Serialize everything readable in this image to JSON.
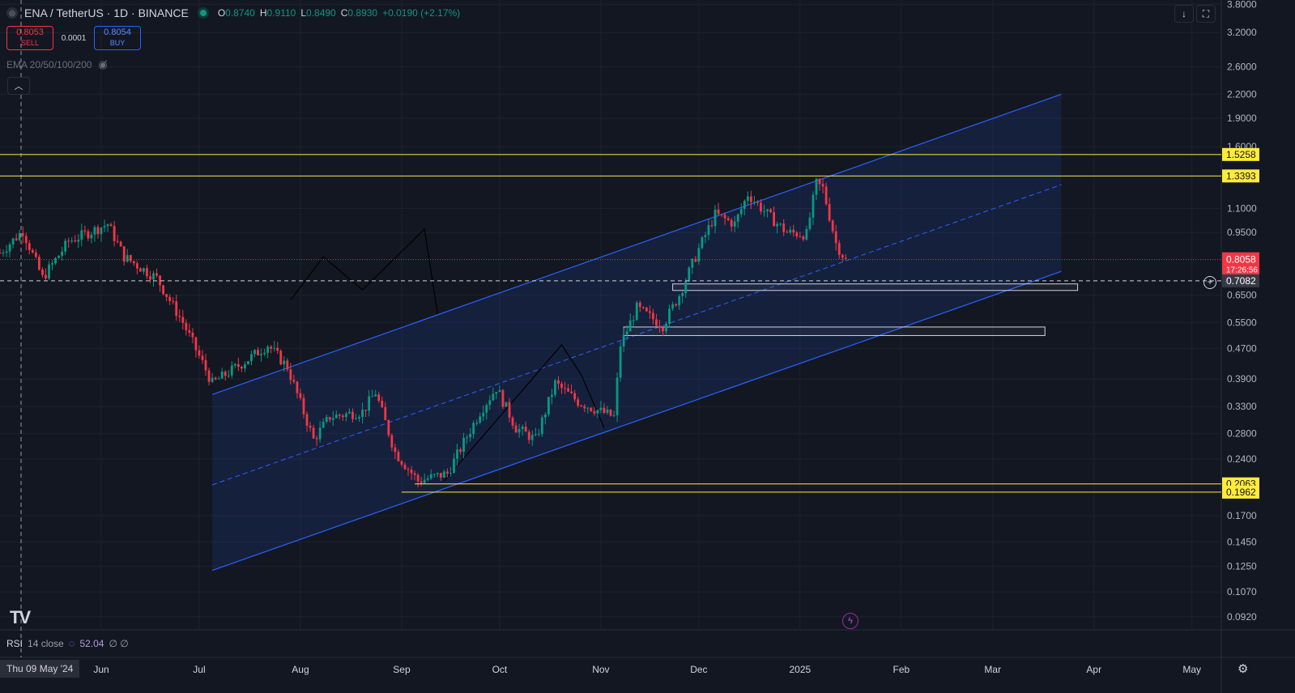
{
  "header": {
    "symbol": "ENA / TetherUS · 1D · BINANCE",
    "ohlc": {
      "O": "0.8740",
      "H": "0.9110",
      "L": "0.8490",
      "C": "0.8930",
      "change": "+0.0190 (+2.17%)"
    }
  },
  "trade": {
    "sell_price": "0.8053",
    "sell_label": "SELL",
    "spread": "0.0001",
    "buy_price": "0.8054",
    "buy_label": "BUY"
  },
  "indicators": {
    "ema_label": "EMA 20/50/100/200"
  },
  "rsi": {
    "name": "RSI",
    "params": "14 close",
    "value": "52.04",
    "extra": "∅ ∅"
  },
  "cursor_date": "Thu 09 May '24",
  "icons": [
    "symbol-icon",
    "eye-icon",
    "collapse-icon",
    "download-icon",
    "fullscreen-icon",
    "tv-logo",
    "bolt-icon",
    "rsi-icon",
    "gear-icon",
    "plus-circle-icon"
  ],
  "colors": {
    "background": "#131722",
    "up": "#089981",
    "down": "#f23645",
    "channel": "#2962ff",
    "level": "#ffeb3b",
    "price_tag": "#f23645"
  },
  "chart_data": {
    "type": "candlestick",
    "scale": "log",
    "ylim": [
      0.085,
      3.9
    ],
    "x_range": [
      "2024-05-01",
      "2025-05-10"
    ],
    "y_ticks": [
      "3.8000",
      "3.2000",
      "2.6000",
      "2.2000",
      "1.9000",
      "1.6000",
      "1.1000",
      "0.9500",
      "0.6500",
      "0.5500",
      "0.4700",
      "0.3900",
      "0.3300",
      "0.2800",
      "0.2400",
      "0.1700",
      "0.1450",
      "0.1250",
      "0.1070",
      "0.0920"
    ],
    "x_ticks": [
      {
        "label": "Jun",
        "date": "2024-06-01"
      },
      {
        "label": "Jul",
        "date": "2024-07-01"
      },
      {
        "label": "Aug",
        "date": "2024-08-01"
      },
      {
        "label": "Sep",
        "date": "2024-09-01"
      },
      {
        "label": "Oct",
        "date": "2024-10-01"
      },
      {
        "label": "Nov",
        "date": "2024-11-01"
      },
      {
        "label": "Dec",
        "date": "2024-12-01"
      },
      {
        "label": "2025",
        "date": "2025-01-01"
      },
      {
        "label": "Feb",
        "date": "2025-02-01"
      },
      {
        "label": "Mar",
        "date": "2025-03-01"
      },
      {
        "label": "Apr",
        "date": "2025-04-01"
      },
      {
        "label": "May",
        "date": "2025-05-01"
      }
    ],
    "price_anchors": [
      [
        "2024-05-01",
        0.84
      ],
      [
        "2024-05-08",
        0.96
      ],
      [
        "2024-05-14",
        0.72
      ],
      [
        "2024-05-22",
        0.9
      ],
      [
        "2024-06-03",
        1.0
      ],
      [
        "2024-06-08",
        0.82
      ],
      [
        "2024-06-18",
        0.72
      ],
      [
        "2024-06-26",
        0.55
      ],
      [
        "2024-07-05",
        0.38
      ],
      [
        "2024-07-16",
        0.44
      ],
      [
        "2024-07-22",
        0.48
      ],
      [
        "2024-07-28",
        0.42
      ],
      [
        "2024-08-05",
        0.27
      ],
      [
        "2024-08-10",
        0.31
      ],
      [
        "2024-08-20",
        0.32
      ],
      [
        "2024-08-24",
        0.36
      ],
      [
        "2024-08-30",
        0.25
      ],
      [
        "2024-09-06",
        0.21
      ],
      [
        "2024-09-15",
        0.22
      ],
      [
        "2024-09-25",
        0.32
      ],
      [
        "2024-09-30",
        0.37
      ],
      [
        "2024-10-06",
        0.29
      ],
      [
        "2024-10-12",
        0.27
      ],
      [
        "2024-10-18",
        0.38
      ],
      [
        "2024-10-25",
        0.34
      ],
      [
        "2024-11-01",
        0.32
      ],
      [
        "2024-11-05",
        0.31
      ],
      [
        "2024-11-07",
        0.48
      ],
      [
        "2024-11-12",
        0.6
      ],
      [
        "2024-11-20",
        0.54
      ],
      [
        "2024-11-25",
        0.65
      ],
      [
        "2024-12-01",
        0.86
      ],
      [
        "2024-12-06",
        1.06
      ],
      [
        "2024-12-12",
        1.0
      ],
      [
        "2024-12-16",
        1.2
      ],
      [
        "2024-12-23",
        1.04
      ],
      [
        "2024-12-28",
        0.95
      ],
      [
        "2025-01-03",
        0.94
      ],
      [
        "2025-01-06",
        1.28
      ],
      [
        "2025-01-08",
        1.24
      ],
      [
        "2025-01-12",
        0.89
      ],
      [
        "2025-01-15",
        0.8
      ]
    ],
    "last_price": "0.8058",
    "countdown": "17:26:56",
    "crosshair_price": "0.7082",
    "levels": [
      {
        "label": "1.5258",
        "price": 1.5258,
        "from": "2024-05-01"
      },
      {
        "label": "1.3393",
        "price": 1.3393,
        "from": "2024-05-01"
      },
      {
        "label": "0.2063",
        "price": 0.2063,
        "from": "2024-09-05"
      },
      {
        "label": "0.1962",
        "price": 0.1962,
        "from": "2024-09-01"
      }
    ],
    "channel": {
      "start": "2024-07-05",
      "end": "2025-03-22",
      "upper": [
        0.355,
        2.2
      ],
      "mid": [
        0.205,
        1.27
      ],
      "lower": [
        0.122,
        0.75
      ]
    },
    "zones": [
      {
        "from": "2024-11-23",
        "to": "2025-03-27",
        "top": 0.695,
        "bottom": 0.668
      },
      {
        "from": "2024-11-08",
        "to": "2025-03-17",
        "top": 0.535,
        "bottom": 0.508
      }
    ],
    "paths": [
      [
        [
          "2024-07-29",
          0.63
        ],
        [
          "2024-08-08",
          0.82
        ],
        [
          "2024-08-20",
          0.67
        ],
        [
          "2024-09-08",
          0.97
        ],
        [
          "2024-09-12",
          0.58
        ]
      ],
      [
        [
          "2024-09-14",
          0.21
        ],
        [
          "2024-10-20",
          0.48
        ],
        [
          "2024-10-26",
          0.4
        ],
        [
          "2024-11-02",
          0.29
        ]
      ]
    ]
  }
}
